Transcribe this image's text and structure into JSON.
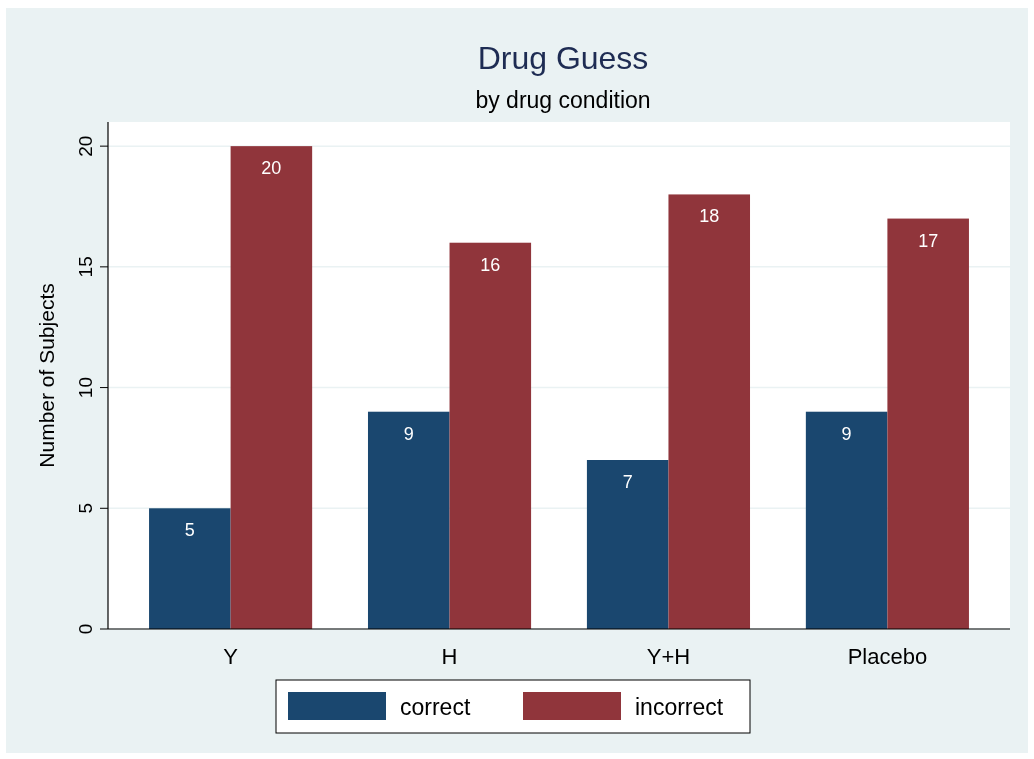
{
  "chart_data": {
    "type": "bar",
    "title": "Drug Guess",
    "subtitle": "by drug condition",
    "ylabel": "Number of Subjects",
    "categories": [
      "Y",
      "H",
      "Y+H",
      "Placebo"
    ],
    "series": [
      {
        "name": "correct",
        "color": "#1a476f",
        "values": [
          5,
          9,
          7,
          9
        ]
      },
      {
        "name": "incorrect",
        "color": "#90353b",
        "values": [
          20,
          16,
          18,
          17
        ]
      }
    ],
    "ylim": [
      0,
      21
    ],
    "yticks": [
      0,
      5,
      10,
      15,
      20
    ],
    "grid": "y",
    "legend": "bottom",
    "data_labels": true
  }
}
